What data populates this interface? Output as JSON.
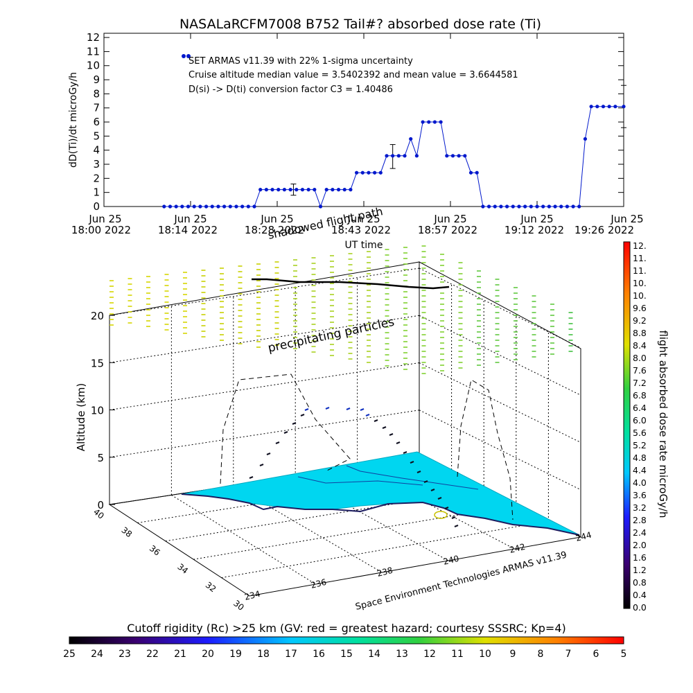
{
  "title": "NASALaRCFM7008  B752 Tail#? absorbed dose rate (Ti)",
  "timeseries": {
    "type": "line",
    "ylabel": "dD(Ti)/dt microGy/h",
    "xlabel": "UT time",
    "ylim": [
      0,
      12
    ],
    "y_ticks": [
      "0",
      "1",
      "2",
      "3",
      "4",
      "5",
      "6",
      "7",
      "8",
      "9",
      "10",
      "11",
      "12"
    ],
    "x_ticks": [
      {
        "l1": "Jun 25",
        "l2": "18:00 2022",
        "t": 0
      },
      {
        "l1": "Jun 25",
        "l2": "18:14 2022",
        "t": 14.4
      },
      {
        "l1": "Jun 25",
        "l2": "18:28 2022",
        "t": 28.8
      },
      {
        "l1": "Jun 25",
        "l2": "18:43 2022",
        "t": 43.2
      },
      {
        "l1": "Jun 25",
        "l2": "18:57 2022",
        "t": 57.6
      },
      {
        "l1": "Jun 25",
        "l2": "19:12 2022",
        "t": 72.0
      },
      {
        "l1": "Jun 25",
        "l2": "19:26 2022",
        "t": 86.4
      }
    ],
    "x_range_minutes": [
      0,
      86.4
    ],
    "annotations": [
      "SET ARMAS v11.39 with 22% 1-sigma uncertainty",
      "Cruise altitude median value = 3.5402392 and mean value = 3.6644581",
      "D(si) -> D(ti) conversion factor C3 = 1.40486"
    ],
    "series": [
      {
        "color": "#0018cc",
        "x": [
          10.0,
          11.0,
          12.0,
          13.0,
          14.0,
          15.0,
          16.0,
          17.0,
          18.0,
          19.0,
          20.0,
          21.0,
          22.0,
          23.0,
          24.0,
          25.0,
          26.0,
          27.0,
          28.0,
          29.0,
          30.0,
          31.0,
          32.0,
          33.0,
          34.0,
          35.0,
          36.0,
          37.0,
          38.0,
          39.0,
          40.0,
          41.0,
          42.0,
          43.0,
          44.0,
          45.0,
          46.0,
          47.0,
          48.0,
          49.0,
          50.0,
          51.0,
          52.0,
          53.0,
          54.0,
          55.0,
          56.0,
          57.0,
          58.0,
          59.0,
          60.0,
          61.0,
          62.0,
          63.0,
          64.0,
          65.0,
          66.0,
          67.0,
          68.0,
          69.0,
          70.0,
          71.0,
          72.0,
          73.0,
          74.0,
          75.0,
          76.0,
          77.0,
          78.0,
          79.0,
          80.0,
          81.0,
          82.0,
          83.0,
          84.0,
          85.0,
          86.4
        ],
        "y": [
          0,
          0,
          0,
          0,
          0,
          0,
          0,
          0,
          0,
          0,
          0,
          0,
          0,
          0,
          0,
          0,
          1.2,
          1.2,
          1.2,
          1.2,
          1.2,
          1.2,
          1.2,
          1.2,
          1.2,
          1.2,
          0,
          1.2,
          1.2,
          1.2,
          1.2,
          1.2,
          2.4,
          2.4,
          2.4,
          2.4,
          2.4,
          3.6,
          3.6,
          3.6,
          3.6,
          4.8,
          3.6,
          6.0,
          6.0,
          6.0,
          6.0,
          3.6,
          3.6,
          3.6,
          3.6,
          2.4,
          2.4,
          0,
          0,
          0,
          0,
          0,
          0,
          0,
          0,
          0,
          0,
          0,
          0,
          0,
          0,
          0,
          0,
          0,
          4.8,
          7.1,
          7.1,
          7.1,
          7.1,
          7.1,
          7.1
        ]
      }
    ],
    "error_bars": [
      {
        "x": 31.5,
        "low": 0.8,
        "high": 1.6
      },
      {
        "x": 48.0,
        "low": 2.7,
        "high": 4.4
      },
      {
        "x": 86.4,
        "low": 5.6,
        "high": 8.6
      }
    ]
  },
  "map3d": {
    "ylabel": "Altitude (km)",
    "z_ticks": [
      "0",
      "5",
      "10",
      "15",
      "20"
    ],
    "lat_ticks": [
      "30",
      "32",
      "34",
      "36",
      "38",
      "40"
    ],
    "lon_ticks": [
      "234",
      "236",
      "238",
      "240",
      "242",
      "244"
    ],
    "labels": {
      "precipitating": "precipitating particles",
      "shadowed": "shadowed flight path",
      "credit": "Space Environment Technologies ARMAS v11.39"
    }
  },
  "colorbar_right": {
    "label": "flight absorbed dose rate microGy/h",
    "ticks": [
      "0.0",
      "0.4",
      "0.8",
      "1.2",
      "1.6",
      "2.0",
      "2.4",
      "2.8",
      "3.2",
      "3.6",
      "4.0",
      "4.4",
      "4.8",
      "5.2",
      "5.6",
      "6.0",
      "6.4",
      "6.8",
      "7.2",
      "7.6",
      "8.0",
      "8.4",
      "8.8",
      "9.2",
      "9.6",
      "10.",
      "10.",
      "11.",
      "11.",
      "12."
    ]
  },
  "colorbar_bottom": {
    "label": "Cutoff rigidity (Rc) >25 km (GV: red = greatest hazard; courtesy SSSRC; Kp=4)",
    "ticks": [
      "25",
      "24",
      "23",
      "22",
      "21",
      "20",
      "19",
      "18",
      "17",
      "16",
      "15",
      "14",
      "13",
      "12",
      "11",
      "10",
      "9",
      "8",
      "7",
      "6",
      "5"
    ]
  }
}
